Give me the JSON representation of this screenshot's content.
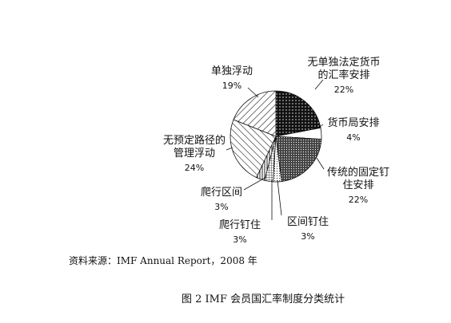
{
  "chart_data": {
    "type": "pie",
    "slices": [
      {
        "label": "无单独法定货币的汇率安排",
        "label_lines": [
          "无单独法定货币",
          "的汇率安排"
        ],
        "value": 22,
        "value_text": "22%",
        "pattern": "dots-dense"
      },
      {
        "label": "货币局安排",
        "label_lines": [
          "货币局安排"
        ],
        "value": 4,
        "value_text": "4%",
        "pattern": "white"
      },
      {
        "label": "传统的固定钉住安排",
        "label_lines": [
          "传统的固定钉",
          "住安排"
        ],
        "value": 22,
        "value_text": "22%",
        "pattern": "dots-fine"
      },
      {
        "label": "区间钉住",
        "label_lines": [
          "区间钉住"
        ],
        "value": 3,
        "value_text": "3%",
        "pattern": "dots-light"
      },
      {
        "label": "爬行钉住",
        "label_lines": [
          "爬行钉住"
        ],
        "value": 3,
        "value_text": "3%",
        "pattern": "grid"
      },
      {
        "label": "爬行区间",
        "label_lines": [
          "爬行区间"
        ],
        "value": 3,
        "value_text": "3%",
        "pattern": "vertical"
      },
      {
        "label": "无预定路径的管理浮动",
        "label_lines": [
          "无预定路径的",
          "管理浮动"
        ],
        "value": 24,
        "value_text": "24%",
        "pattern": "diag-right"
      },
      {
        "label": "单独浮动",
        "label_lines": [
          "单独浮动"
        ],
        "value": 19,
        "value_text": "19%",
        "pattern": "diag-left"
      }
    ]
  },
  "source_note": "资料来源：IMF Annual Report，2008 年",
  "caption": "图 2 IMF 会员国汇率制度分类统计"
}
